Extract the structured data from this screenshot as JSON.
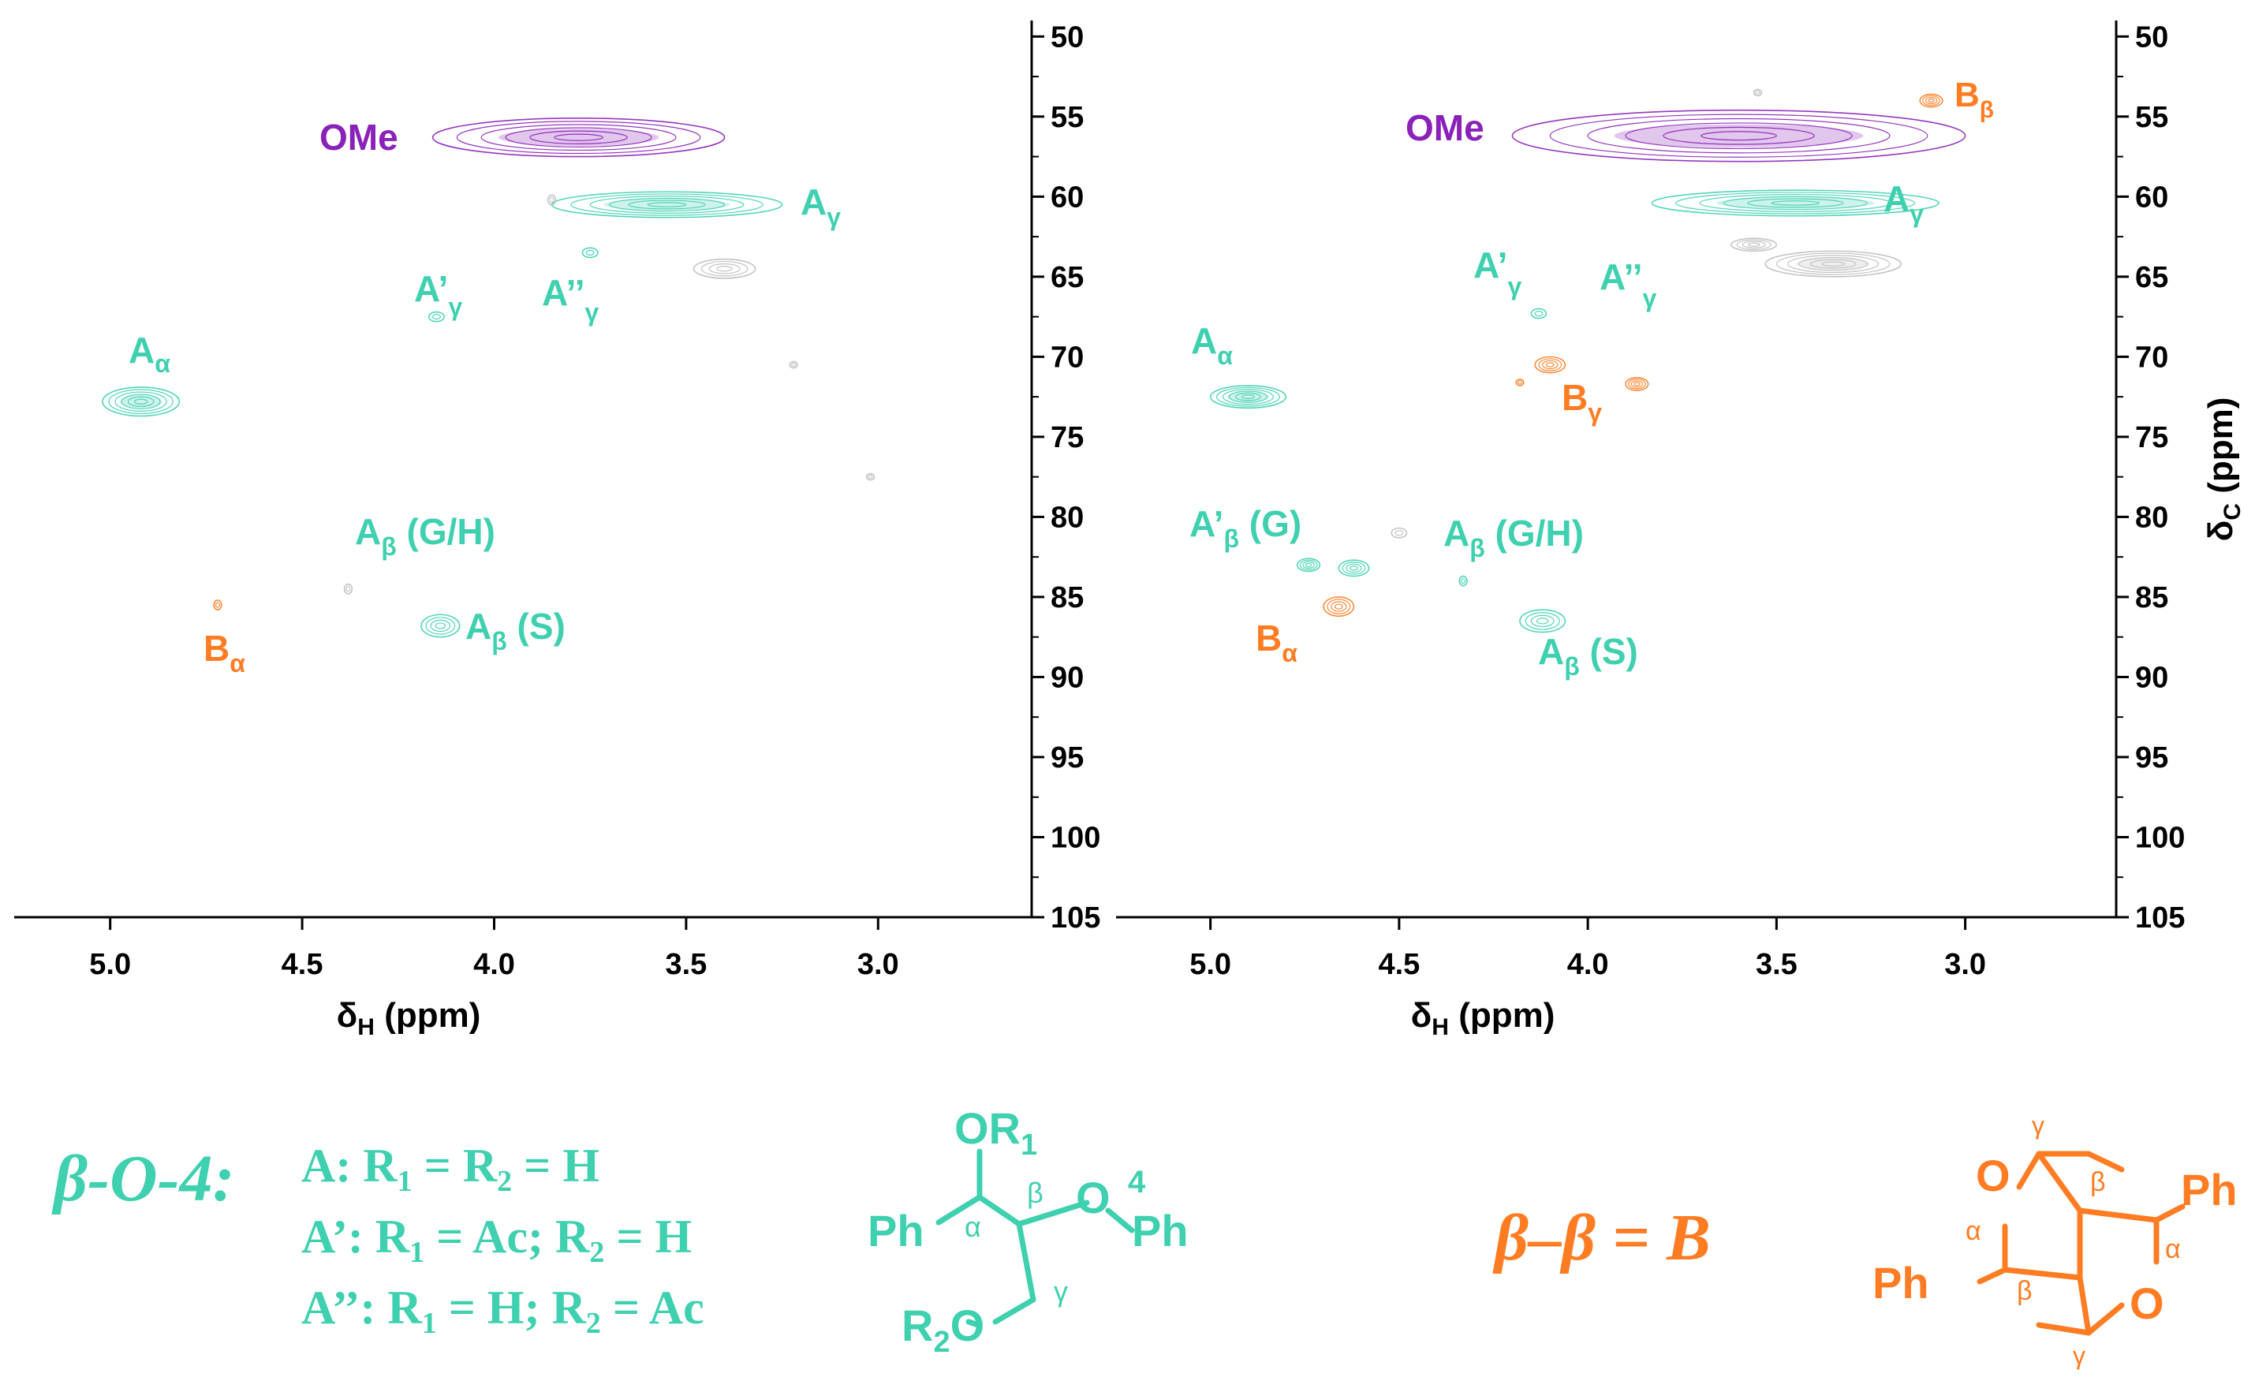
{
  "colors": {
    "teal": "#3fd0b0",
    "orange": "#ff7c22",
    "purple": "#8a21b8",
    "gray": "#bdbdbd",
    "axis": "#000000"
  },
  "chart_data": [
    {
      "type": "scatter",
      "title": "",
      "xlabel": "δH (ppm)",
      "ylabel": "",
      "xlim": [
        5.25,
        2.6
      ],
      "ylim": [
        105,
        49
      ],
      "xticks": [
        "5.0",
        "4.5",
        "4.0",
        "3.5",
        "3.0"
      ],
      "yticks": [
        "50",
        "55",
        "60",
        "65",
        "70",
        "75",
        "80",
        "85",
        "90",
        "95",
        "100",
        "105"
      ],
      "series": [
        {
          "name": "OMe",
          "color": "purple",
          "points": [
            {
              "x": 3.78,
              "y": 56.3,
              "dx": 0.38,
              "dy": 1.2
            }
          ]
        },
        {
          "name": "Aγ",
          "color": "teal",
          "points": [
            {
              "x": 3.55,
              "y": 60.5,
              "dx": 0.3,
              "dy": 0.8
            }
          ]
        },
        {
          "name": "unassigned",
          "color": "gray",
          "points": [
            {
              "x": 3.4,
              "y": 64.5,
              "dx": 0.08,
              "dy": 0.6
            },
            {
              "x": 3.85,
              "y": 60.2,
              "dx": 0.01,
              "dy": 0.3
            },
            {
              "x": 3.22,
              "y": 70.5,
              "dx": 0.01,
              "dy": 0.2
            },
            {
              "x": 3.02,
              "y": 77.5,
              "dx": 0.01,
              "dy": 0.2
            },
            {
              "x": 4.38,
              "y": 84.5,
              "dx": 0.01,
              "dy": 0.3
            }
          ]
        },
        {
          "name": "A'γ",
          "color": "teal",
          "points": [
            {
              "x": 4.15,
              "y": 67.5,
              "dx": 0.02,
              "dy": 0.3
            }
          ]
        },
        {
          "name": "A''γ",
          "color": "teal",
          "points": [
            {
              "x": 3.75,
              "y": 63.5,
              "dx": 0.02,
              "dy": 0.3
            }
          ]
        },
        {
          "name": "Aα",
          "color": "teal",
          "points": [
            {
              "x": 4.92,
              "y": 72.8,
              "dx": 0.1,
              "dy": 0.9
            }
          ]
        },
        {
          "name": "Aβ (S)",
          "color": "teal",
          "points": [
            {
              "x": 4.14,
              "y": 86.8,
              "dx": 0.05,
              "dy": 0.7
            }
          ]
        },
        {
          "name": "Bα",
          "color": "orange",
          "points": [
            {
              "x": 4.72,
              "y": 85.5,
              "dx": 0.01,
              "dy": 0.3
            }
          ]
        }
      ],
      "labels": [
        {
          "id": "ome",
          "text": "OMe",
          "sub": "",
          "color": "purple"
        },
        {
          "id": "ag",
          "text": "A",
          "sub": "γ",
          "color": "teal"
        },
        {
          "id": "apg",
          "text": "A’",
          "sub": "γ",
          "color": "teal"
        },
        {
          "id": "appg",
          "text": "A’’",
          "sub": "γ",
          "color": "teal"
        },
        {
          "id": "aa",
          "text": "A",
          "sub": "α",
          "color": "teal"
        },
        {
          "id": "abgh",
          "text": "A",
          "sub": "β",
          "tail": " (G/H)",
          "color": "teal"
        },
        {
          "id": "abs",
          "text": "A",
          "sub": "β",
          "tail": " (S)",
          "color": "teal"
        },
        {
          "id": "ba",
          "text": "B",
          "sub": "α",
          "color": "orange"
        }
      ]
    },
    {
      "type": "scatter",
      "title": "",
      "xlabel": "δH (ppm)",
      "ylabel": "δC (ppm)",
      "xlim": [
        5.25,
        2.6
      ],
      "ylim": [
        105,
        49
      ],
      "xticks": [
        "5.0",
        "4.5",
        "4.0",
        "3.5",
        "3.0"
      ],
      "yticks": [
        "50",
        "55",
        "60",
        "65",
        "70",
        "75",
        "80",
        "85",
        "90",
        "95",
        "100",
        "105"
      ],
      "series": [
        {
          "name": "OMe",
          "color": "purple",
          "points": [
            {
              "x": 3.6,
              "y": 56.2,
              "dx": 0.6,
              "dy": 1.6
            }
          ]
        },
        {
          "name": "Aγ",
          "color": "teal",
          "points": [
            {
              "x": 3.45,
              "y": 60.4,
              "dx": 0.38,
              "dy": 0.8
            }
          ]
        },
        {
          "name": "unassigned",
          "color": "gray",
          "points": [
            {
              "x": 3.35,
              "y": 64.2,
              "dx": 0.18,
              "dy": 0.8
            },
            {
              "x": 3.56,
              "y": 63.0,
              "dx": 0.06,
              "dy": 0.4
            },
            {
              "x": 4.5,
              "y": 81.0,
              "dx": 0.02,
              "dy": 0.3
            },
            {
              "x": 3.55,
              "y": 53.5,
              "dx": 0.01,
              "dy": 0.2
            }
          ]
        },
        {
          "name": "A'γ",
          "color": "teal",
          "points": [
            {
              "x": 4.13,
              "y": 67.3,
              "dx": 0.02,
              "dy": 0.3
            }
          ]
        },
        {
          "name": "Bβ",
          "color": "orange",
          "points": [
            {
              "x": 3.09,
              "y": 54.0,
              "dx": 0.03,
              "dy": 0.4
            }
          ]
        },
        {
          "name": "Bγ",
          "color": "orange",
          "points": [
            {
              "x": 4.1,
              "y": 70.5,
              "dx": 0.04,
              "dy": 0.5
            },
            {
              "x": 3.87,
              "y": 71.7,
              "dx": 0.03,
              "dy": 0.4
            },
            {
              "x": 4.18,
              "y": 71.6,
              "dx": 0.01,
              "dy": 0.2
            }
          ]
        },
        {
          "name": "Aα",
          "color": "teal",
          "points": [
            {
              "x": 4.9,
              "y": 72.5,
              "dx": 0.1,
              "dy": 0.7
            }
          ]
        },
        {
          "name": "A'β (G)",
          "color": "teal",
          "points": [
            {
              "x": 4.74,
              "y": 83.0,
              "dx": 0.03,
              "dy": 0.4
            },
            {
              "x": 4.62,
              "y": 83.2,
              "dx": 0.04,
              "dy": 0.5
            }
          ]
        },
        {
          "name": "Bα",
          "color": "orange",
          "points": [
            {
              "x": 4.66,
              "y": 85.6,
              "dx": 0.04,
              "dy": 0.6
            }
          ]
        },
        {
          "name": "Aβ (S)",
          "color": "teal",
          "points": [
            {
              "x": 4.12,
              "y": 86.5,
              "dx": 0.06,
              "dy": 0.7
            }
          ]
        },
        {
          "name": "Aβ (G/H)",
          "color": "teal",
          "points": [
            {
              "x": 4.33,
              "y": 84.0,
              "dx": 0.01,
              "dy": 0.3
            }
          ]
        }
      ],
      "labels": [
        {
          "id": "ome",
          "text": "OMe",
          "sub": "",
          "color": "purple"
        },
        {
          "id": "bb",
          "text": "B",
          "sub": "β",
          "color": "orange"
        },
        {
          "id": "ag",
          "text": "A",
          "sub": "γ",
          "color": "teal"
        },
        {
          "id": "apg",
          "text": "A’",
          "sub": "γ",
          "color": "teal"
        },
        {
          "id": "appg",
          "text": "A’’",
          "sub": "γ",
          "color": "teal"
        },
        {
          "id": "aa",
          "text": "A",
          "sub": "α",
          "color": "teal"
        },
        {
          "id": "bg",
          "text": "B",
          "sub": "γ",
          "color": "orange"
        },
        {
          "id": "apbg",
          "text": "A’",
          "sub": "β",
          "tail": " (G)",
          "color": "teal"
        },
        {
          "id": "abgh",
          "text": "A",
          "sub": "β",
          "tail": " (G/H)",
          "color": "teal"
        },
        {
          "id": "ba",
          "text": "B",
          "sub": "α",
          "color": "orange"
        },
        {
          "id": "abs",
          "text": "A",
          "sub": "β",
          "tail": " (S)",
          "color": "teal"
        }
      ]
    }
  ],
  "axis_labels": {
    "x_main": "δ",
    "x_sub": "H",
    "x_unit": " (ppm)",
    "y_main": "δ",
    "y_sub": "C",
    "y_unit": " (ppm)"
  },
  "legend": {
    "beta_o4": {
      "title": "β-O-4:",
      "lines": [
        {
          "a": "A: R",
          "s1": "1",
          "b": " = R",
          "s2": "2",
          "c": " = H"
        },
        {
          "a": "A’: R",
          "s1": "1",
          "b": " = Ac; R",
          "s2": "2",
          "c": " = H"
        },
        {
          "a": "A’’: R",
          "s1": "1",
          "b": " = H; R",
          "s2": "2",
          "c": " = Ac"
        }
      ]
    },
    "structure_a": {
      "or1": "OR",
      "or1_sub": "1",
      "ph_left": "Ph",
      "alpha": "α",
      "beta": "β",
      "o": "O",
      "four": "4",
      "ph_right": "Ph",
      "gamma": "γ",
      "r2o": "R",
      "r2o_sub": "2",
      "r2o_o": "O"
    },
    "beta_beta": {
      "text": "β–β = B"
    },
    "structure_b": {
      "gamma_top": "γ",
      "o_top": "O",
      "beta_top": "β",
      "ph_top": "Ph",
      "alpha_left": "α",
      "alpha_right": "α",
      "ph_left": "Ph",
      "beta_bottom": "β",
      "o_bottom": "O",
      "gamma_bottom": "γ"
    }
  }
}
